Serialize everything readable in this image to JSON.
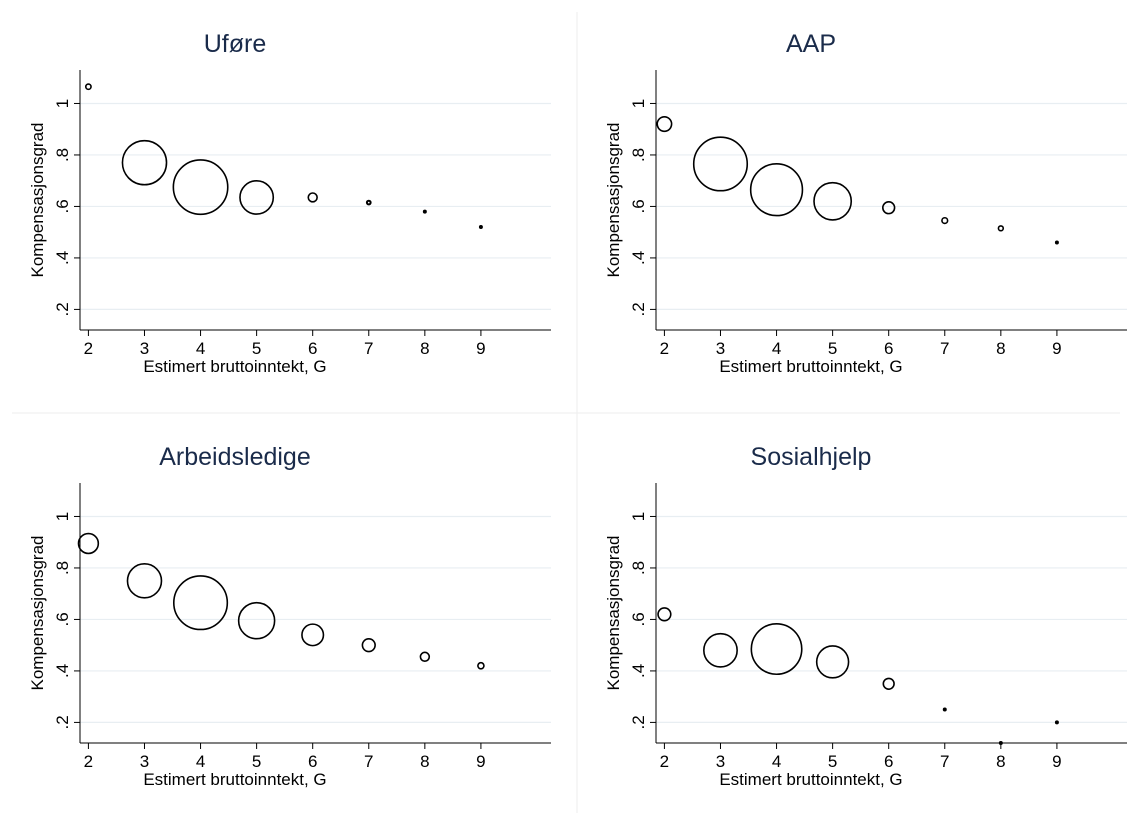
{
  "chart_data": [
    {
      "type": "scatter",
      "title": "Uføre",
      "xlabel": "Estimert bruttoinntekt, G",
      "ylabel": "Kompensasjonsgrad",
      "x_ticks": [
        "2",
        "3",
        "4",
        "5",
        "6",
        "7",
        "8",
        "9"
      ],
      "y_ticks": [
        ".2",
        ".4",
        ".6",
        ".8",
        "1"
      ],
      "xlim": [
        1.85,
        10.25
      ],
      "ylim": [
        0.12,
        1.13
      ],
      "grid": true,
      "marker": "hollow-circle-weighted",
      "points": [
        {
          "x": 2,
          "y": 1.065,
          "weight": 0.006
        },
        {
          "x": 3,
          "y": 0.77,
          "weight": 0.42
        },
        {
          "x": 4,
          "y": 0.675,
          "weight": 0.64
        },
        {
          "x": 5,
          "y": 0.635,
          "weight": 0.24
        },
        {
          "x": 6,
          "y": 0.635,
          "weight": 0.017
        },
        {
          "x": 7,
          "y": 0.615,
          "weight": 0.003
        },
        {
          "x": 8,
          "y": 0.58,
          "weight": 0.0005
        },
        {
          "x": 9,
          "y": 0.52,
          "weight": 0.0001
        }
      ]
    },
    {
      "type": "scatter",
      "title": "AAP",
      "xlabel": "Estimert bruttoinntekt, G",
      "ylabel": "Kompensasjonsgrad",
      "x_ticks": [
        "2",
        "3",
        "4",
        "5",
        "6",
        "7",
        "8",
        "9"
      ],
      "y_ticks": [
        ".2",
        ".4",
        ".6",
        ".8",
        "1"
      ],
      "xlim": [
        1.85,
        10.25
      ],
      "ylim": [
        0.12,
        1.13
      ],
      "grid": true,
      "marker": "hollow-circle-weighted",
      "points": [
        {
          "x": 2,
          "y": 0.92,
          "weight": 0.045
        },
        {
          "x": 3,
          "y": 0.765,
          "weight": 0.62
        },
        {
          "x": 4,
          "y": 0.665,
          "weight": 0.58
        },
        {
          "x": 5,
          "y": 0.62,
          "weight": 0.3
        },
        {
          "x": 6,
          "y": 0.595,
          "weight": 0.03
        },
        {
          "x": 7,
          "y": 0.545,
          "weight": 0.007
        },
        {
          "x": 8,
          "y": 0.515,
          "weight": 0.005
        },
        {
          "x": 9,
          "y": 0.46,
          "weight": 0.0006
        }
      ]
    },
    {
      "type": "scatter",
      "title": "Arbeidsledige",
      "xlabel": "Estimert bruttoinntekt, G",
      "ylabel": "Kompensasjonsgrad",
      "x_ticks": [
        "2",
        "3",
        "4",
        "5",
        "6",
        "7",
        "8",
        "9"
      ],
      "y_ticks": [
        ".2",
        ".4",
        ".6",
        ".8",
        "1"
      ],
      "xlim": [
        1.85,
        10.25
      ],
      "ylim": [
        0.12,
        1.13
      ],
      "grid": true,
      "marker": "hollow-circle-weighted",
      "points": [
        {
          "x": 2,
          "y": 0.895,
          "weight": 0.085
        },
        {
          "x": 3,
          "y": 0.75,
          "weight": 0.25
        },
        {
          "x": 4,
          "y": 0.665,
          "weight": 0.62
        },
        {
          "x": 5,
          "y": 0.595,
          "weight": 0.28
        },
        {
          "x": 6,
          "y": 0.54,
          "weight": 0.1
        },
        {
          "x": 7,
          "y": 0.5,
          "weight": 0.035
        },
        {
          "x": 8,
          "y": 0.455,
          "weight": 0.017
        },
        {
          "x": 9,
          "y": 0.42,
          "weight": 0.008
        }
      ]
    },
    {
      "type": "scatter",
      "title": "Sosialhjelp",
      "xlabel": "Estimert bruttoinntekt, G",
      "ylabel": "Kompensasjonsgrad",
      "x_ticks": [
        "2",
        "3",
        "4",
        "5",
        "6",
        "7",
        "8",
        "9"
      ],
      "y_ticks": [
        ".2",
        ".4",
        ".6",
        ".8",
        "1"
      ],
      "xlim": [
        1.85,
        10.25
      ],
      "ylim": [
        0.12,
        1.13
      ],
      "grid": true,
      "marker": "hollow-circle-weighted",
      "points": [
        {
          "x": 2,
          "y": 0.62,
          "weight": 0.035
        },
        {
          "x": 3,
          "y": 0.48,
          "weight": 0.24
        },
        {
          "x": 4,
          "y": 0.485,
          "weight": 0.55
        },
        {
          "x": 5,
          "y": 0.435,
          "weight": 0.22
        },
        {
          "x": 6,
          "y": 0.35,
          "weight": 0.025
        },
        {
          "x": 7,
          "y": 0.25,
          "weight": 0.0005
        },
        {
          "x": 8,
          "y": 0.12,
          "weight": 0.0001
        },
        {
          "x": 9,
          "y": 0.2,
          "weight": 0.0001
        }
      ]
    }
  ]
}
